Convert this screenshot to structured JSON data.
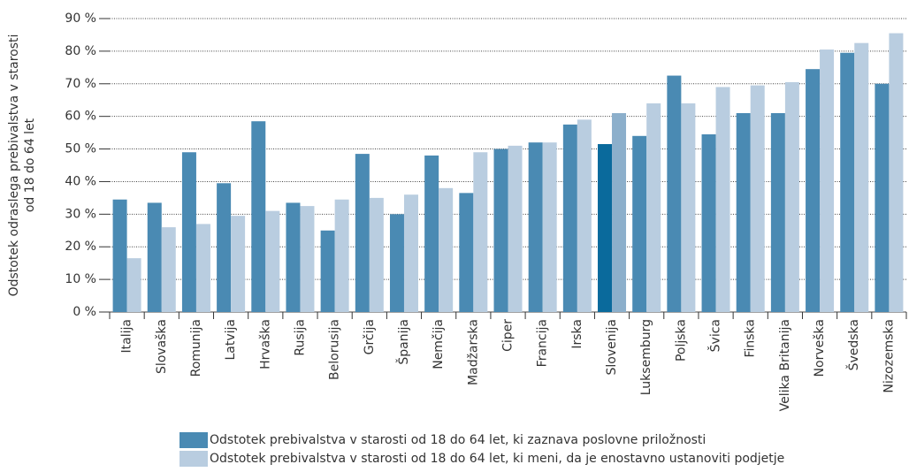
{
  "chart_data": {
    "type": "bar",
    "ylabel": [
      "Odstotek odraslega prebivalstva v starosti",
      "od 18 do 64 let"
    ],
    "categories": [
      "Italija",
      "Slovaška",
      "Romunija",
      "Latvija",
      "Hrvaška",
      "Rusija",
      "Belorusija",
      "Grčija",
      "Španija",
      "Nemčija",
      "Madžarska",
      "Ciper",
      "Francija",
      "Irska",
      "Slovenija",
      "Luksemburg",
      "Poljska",
      "Švica",
      "Finska",
      "Velika Britanija",
      "Norveška",
      "Švedska",
      "Nizozemska"
    ],
    "series": [
      {
        "name": "Odstotek prebivalstva v starosti od 18 do 64 let, ki zaznava poslovne priložnosti",
        "color": "#4a8ab3",
        "colors": [
          "#4a8ab3",
          "#4a8ab3",
          "#4a8ab3",
          "#4a8ab3",
          "#4a8ab3",
          "#4a8ab3",
          "#4a8ab3",
          "#4a8ab3",
          "#4a8ab3",
          "#4a8ab3",
          "#4a8ab3",
          "#4a8ab3",
          "#4a8ab3",
          "#4a8ab3",
          "#0a6a9c",
          "#4a8ab3",
          "#4a8ab3",
          "#4a8ab3",
          "#4a8ab3",
          "#4a8ab3",
          "#4a8ab3",
          "#4a8ab3",
          "#4a8ab3"
        ],
        "values": [
          34.5,
          33.5,
          49,
          39.5,
          58.5,
          33.5,
          25,
          48.5,
          30,
          48,
          36.5,
          50,
          52,
          57.5,
          51.5,
          54,
          72.5,
          54.5,
          61,
          61,
          74.5,
          79.5,
          70
        ]
      },
      {
        "name": "Odstotek prebivalstva v starosti od 18 do 64 let, ki meni, da je enostavno ustanoviti podjetje",
        "color": "#b9cde0",
        "colors": [
          "#b9cde0",
          "#b9cde0",
          "#b9cde0",
          "#b9cde0",
          "#b9cde0",
          "#b9cde0",
          "#b9cde0",
          "#b9cde0",
          "#b9cde0",
          "#b9cde0",
          "#b9cde0",
          "#b9cde0",
          "#b9cde0",
          "#b9cde0",
          "#8cafcb",
          "#b9cde0",
          "#b9cde0",
          "#b9cde0",
          "#b9cde0",
          "#b9cde0",
          "#b9cde0",
          "#b9cde0",
          "#b9cde0"
        ],
        "values": [
          16.5,
          26,
          27,
          29.5,
          31,
          32.5,
          34.5,
          35,
          36,
          38,
          49,
          51,
          52,
          59,
          61,
          64,
          64,
          69,
          69.5,
          70.5,
          80.5,
          82.5,
          85.5
        ]
      }
    ],
    "ylim": [
      0,
      90
    ],
    "yticks": [
      {
        "value": 0,
        "label": "0 %"
      },
      {
        "value": 10,
        "label": "10 %"
      },
      {
        "value": 20,
        "label": "20 %"
      },
      {
        "value": 30,
        "label": "30 %"
      },
      {
        "value": 40,
        "label": "40 %"
      },
      {
        "value": 50,
        "label": "50 %"
      },
      {
        "value": 60,
        "label": "60 %"
      },
      {
        "value": 70,
        "label": "70 %"
      },
      {
        "value": 80,
        "label": "80 %"
      },
      {
        "value": 90,
        "label": "90 %"
      }
    ],
    "grid": true
  }
}
